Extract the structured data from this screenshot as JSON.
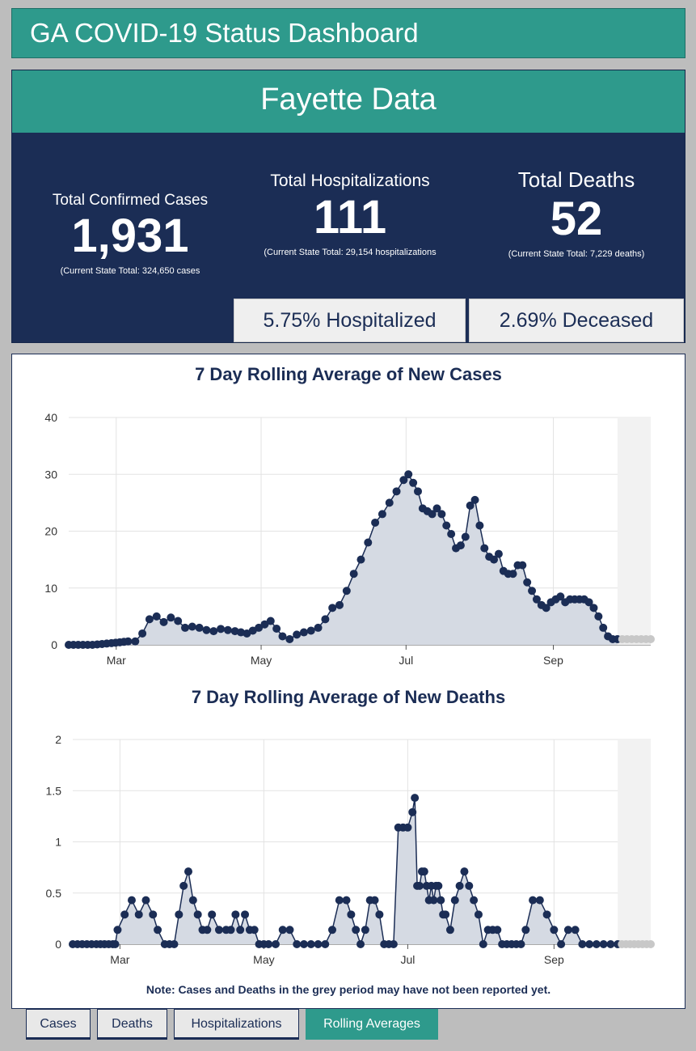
{
  "header": {
    "title": "GA COVID-19 Status Dashboard"
  },
  "county_panel": {
    "title": "Fayette Data",
    "cases": {
      "label": "Total Confirmed Cases",
      "value": "1,931",
      "state_total": "(Current State Total: 324,650 cases"
    },
    "hospitalizations": {
      "label": "Total Hospitalizations",
      "value": "111",
      "state_total": "(Current State Total: 29,154 hospitalizations"
    },
    "deaths": {
      "label": "Total Deaths",
      "value": "52",
      "state_total": "(Current State Total: 7,229 deaths)"
    },
    "hospitalized_pct": "5.75% Hospitalized",
    "deceased_pct": "2.69% Deceased"
  },
  "charts": {
    "note": "Note: Cases and Deaths in the grey period may have not been reported yet."
  },
  "tabs": [
    {
      "label": "Cases",
      "active": false
    },
    {
      "label": "Deaths",
      "active": false
    },
    {
      "label": "Hospitalizations",
      "active": false
    },
    {
      "label": "Rolling Averages",
      "active": true
    }
  ],
  "colors": {
    "teal": "#2e9a8c",
    "navy": "#1b2d55",
    "grey_period": "#c8c8c8",
    "area_fill": "#d5dae3"
  },
  "chart_data": [
    {
      "type": "area",
      "title": "7 Day Rolling Average of New Cases",
      "x_ticks": [
        "Mar",
        "May",
        "Jul",
        "Sep"
      ],
      "x_tick_days": [
        20,
        81,
        142,
        204
      ],
      "ylim": [
        0,
        40
      ],
      "y_ticks": [
        0,
        10,
        20,
        30,
        40
      ],
      "grid": true,
      "x_range_days": [
        0,
        245
      ],
      "grey_period_start_day": 231,
      "series": [
        {
          "x_day": [
            0,
            10,
            18,
            25,
            28,
            31,
            34,
            37,
            40,
            43,
            46,
            49,
            52,
            55,
            58,
            61,
            64,
            67,
            70,
            75,
            80,
            85,
            90,
            93,
            96,
            99,
            102,
            105,
            108,
            111,
            114,
            117,
            120,
            123,
            126,
            129,
            132,
            135,
            138,
            141,
            143,
            145,
            147,
            149,
            151,
            153,
            155,
            157,
            159,
            161,
            163,
            165,
            167,
            169,
            171,
            173,
            175,
            177,
            179,
            181,
            183,
            185,
            187,
            189,
            191,
            193,
            195,
            197,
            199,
            201,
            203,
            205,
            207,
            209,
            211,
            213,
            215,
            217,
            219,
            221,
            223,
            225,
            227,
            229,
            231,
            233,
            235,
            237,
            239,
            241,
            243,
            245
          ],
          "values": [
            0,
            0,
            0.3,
            0.6,
            0.6,
            2,
            4.5,
            5,
            4,
            4.8,
            4.2,
            3,
            3.2,
            3,
            2.6,
            2.4,
            2.8,
            2.6,
            2.4,
            2,
            3,
            4.2,
            1.5,
            1,
            1.8,
            2.2,
            2.5,
            3,
            4.5,
            6.5,
            7,
            9.5,
            12.5,
            15,
            18,
            21.5,
            23,
            25,
            27,
            29,
            30,
            28.5,
            27,
            24,
            23.5,
            23,
            24,
            23,
            21,
            19.5,
            17,
            17.5,
            19,
            24.5,
            25.5,
            21,
            17,
            15.5,
            15,
            16,
            13,
            12.5,
            12.5,
            14,
            14,
            11,
            9.5,
            8,
            7,
            6.5,
            7.5,
            8,
            8.5,
            7.5,
            8,
            8,
            8,
            8,
            7.5,
            6.5,
            5,
            3,
            1.5,
            1,
            1,
            1,
            1,
            1,
            1,
            1,
            1,
            1
          ]
        }
      ]
    },
    {
      "type": "area",
      "title": "7 Day Rolling Average of New Deaths",
      "x_ticks": [
        "Mar",
        "May",
        "Jul",
        "Sep"
      ],
      "x_tick_days": [
        20,
        81,
        142,
        204
      ],
      "ylim": [
        0,
        2
      ],
      "y_ticks": [
        0,
        0.5,
        1,
        1.5,
        2
      ],
      "grid": true,
      "x_range_days": [
        0,
        245
      ],
      "grey_period_start_day": 231,
      "series": [
        {
          "x_day": [
            0,
            10,
            17,
            18,
            19,
            22,
            25,
            28,
            31,
            34,
            36,
            39,
            41,
            43,
            45,
            47,
            49,
            51,
            53,
            55,
            57,
            59,
            62,
            65,
            67,
            69,
            71,
            73,
            75,
            77,
            79,
            81,
            83,
            86,
            89,
            92,
            95,
            98,
            101,
            104,
            107,
            110,
            113,
            116,
            118,
            120,
            122,
            124,
            126,
            128,
            130,
            132,
            134,
            136,
            138,
            140,
            142,
            144,
            145,
            146,
            147,
            148,
            149,
            150,
            151,
            152,
            153,
            154,
            155,
            156,
            157,
            158,
            160,
            162,
            164,
            166,
            168,
            170,
            172,
            174,
            176,
            178,
            180,
            182,
            184,
            186,
            188,
            190,
            192,
            195,
            198,
            201,
            204,
            207,
            210,
            213,
            216,
            219,
            222,
            225,
            228,
            231,
            245
          ],
          "values": [
            0,
            0,
            0,
            0,
            0.14,
            0.29,
            0.43,
            0.29,
            0.43,
            0.29,
            0.14,
            0,
            0,
            0,
            0.29,
            0.57,
            0.71,
            0.43,
            0.29,
            0.14,
            0.14,
            0.29,
            0.14,
            0.14,
            0.14,
            0.29,
            0.14,
            0.29,
            0.14,
            0.14,
            0,
            0,
            0,
            0,
            0.14,
            0.14,
            0,
            0,
            0,
            0,
            0,
            0.14,
            0.43,
            0.43,
            0.29,
            0.14,
            0,
            0.14,
            0.43,
            0.43,
            0.29,
            0,
            0,
            0,
            1.14,
            1.14,
            1.14,
            1.29,
            1.43,
            0.57,
            0.57,
            0.71,
            0.71,
            0.57,
            0.43,
            0.57,
            0.43,
            0.57,
            0.57,
            0.43,
            0.29,
            0.29,
            0.14,
            0.43,
            0.57,
            0.71,
            0.57,
            0.43,
            0.29,
            0,
            0.14,
            0.14,
            0.14,
            0,
            0,
            0,
            0,
            0,
            0.14,
            0.43,
            0.43,
            0.29,
            0.14,
            0,
            0.14,
            0.14,
            0,
            0,
            0,
            0,
            0,
            0,
            0
          ]
        }
      ]
    }
  ]
}
